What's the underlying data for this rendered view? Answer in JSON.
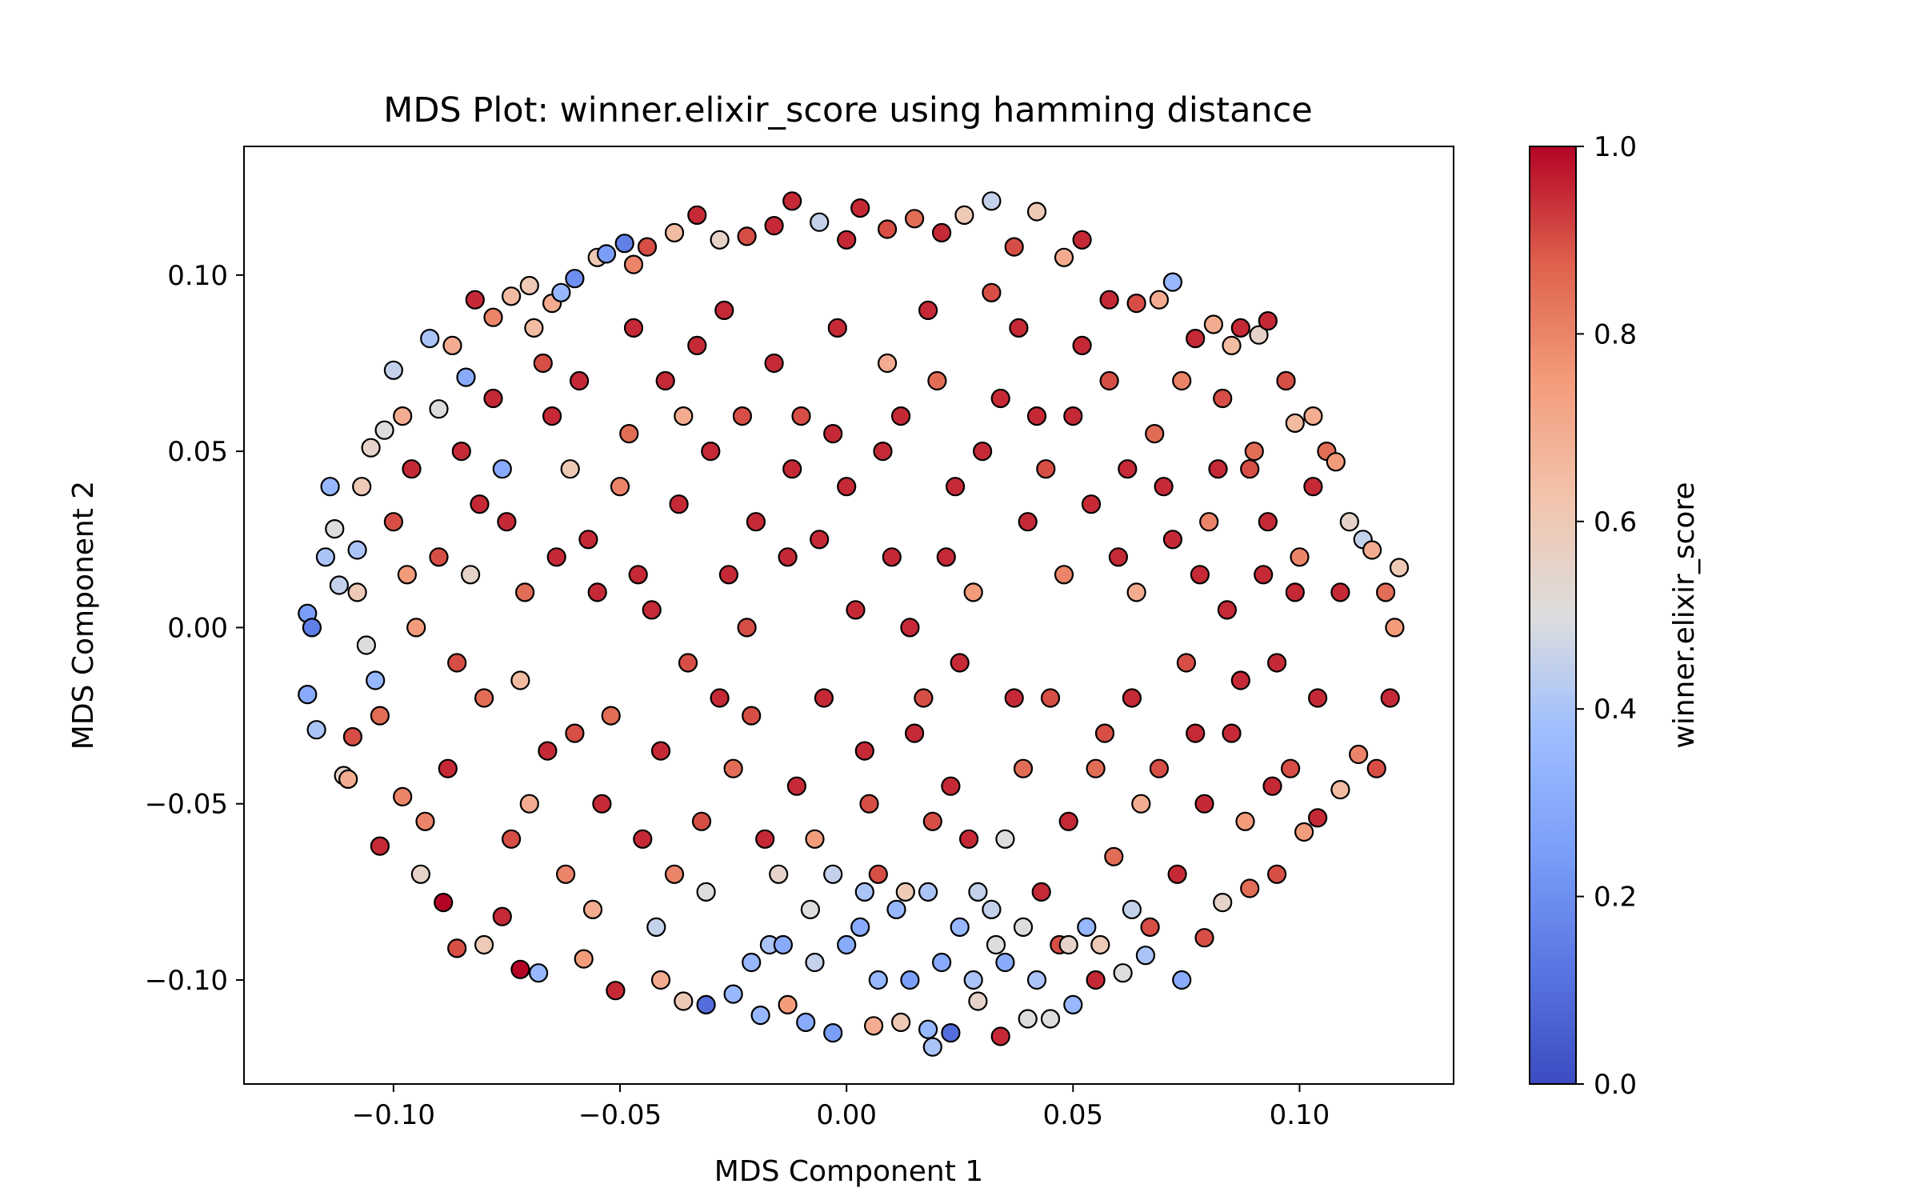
{
  "chart_data": {
    "type": "scatter",
    "title": "MDS Plot: winner.elixir_score using hamming distance",
    "xlabel": "MDS Component 1",
    "ylabel": "MDS Component 2",
    "xlim": [
      -0.133,
      0.134
    ],
    "ylim": [
      -0.1295,
      0.1365
    ],
    "xticks": [
      -0.1,
      -0.05,
      0.0,
      0.05,
      0.1
    ],
    "xtick_labels": [
      "−0.10",
      "−0.05",
      "0.00",
      "0.05",
      "0.10"
    ],
    "yticks": [
      -0.1,
      -0.05,
      0.0,
      0.05,
      0.1
    ],
    "ytick_labels": [
      "−0.10",
      "−0.05",
      "0.00",
      "0.05",
      "0.10"
    ],
    "grid": false,
    "colormap": "coolwarm",
    "colors": {
      "low": "#3b4cc0",
      "mid": "#dddddd",
      "high": "#b40426"
    },
    "colorbar": {
      "label": "winner.elixir_score",
      "range": [
        0.0,
        1.0
      ],
      "ticks": [
        0.0,
        0.2,
        0.4,
        0.6,
        0.8,
        1.0
      ],
      "tick_labels": [
        "0.0",
        "0.2",
        "0.4",
        "0.6",
        "0.8",
        "1.0"
      ]
    },
    "points": [
      [
        -0.119,
        0.004,
        0.25
      ],
      [
        -0.118,
        0.0,
        0.15
      ],
      [
        -0.119,
        -0.019,
        0.3
      ],
      [
        -0.117,
        -0.029,
        0.4
      ],
      [
        -0.114,
        0.04,
        0.35
      ],
      [
        -0.113,
        0.028,
        0.5
      ],
      [
        -0.112,
        0.012,
        0.45
      ],
      [
        -0.111,
        -0.042,
        0.55
      ],
      [
        -0.11,
        -0.043,
        0.7
      ],
      [
        -0.109,
        -0.031,
        0.9
      ],
      [
        -0.108,
        0.022,
        0.4
      ],
      [
        -0.107,
        0.04,
        0.6
      ],
      [
        -0.105,
        0.051,
        0.55
      ],
      [
        -0.104,
        -0.015,
        0.35
      ],
      [
        -0.103,
        -0.062,
        0.95
      ],
      [
        -0.102,
        0.056,
        0.5
      ],
      [
        -0.1,
        0.073,
        0.45
      ],
      [
        -0.098,
        -0.048,
        0.8
      ],
      [
        -0.096,
        0.045,
        0.95
      ],
      [
        -0.094,
        -0.07,
        0.55
      ],
      [
        -0.092,
        0.082,
        0.4
      ],
      [
        -0.09,
        0.062,
        0.5
      ],
      [
        -0.089,
        -0.078,
        1.0
      ],
      [
        -0.087,
        0.08,
        0.7
      ],
      [
        -0.086,
        -0.091,
        0.9
      ],
      [
        -0.084,
        0.071,
        0.3
      ],
      [
        -0.082,
        0.093,
        0.95
      ],
      [
        -0.08,
        -0.09,
        0.6
      ],
      [
        -0.078,
        0.088,
        0.8
      ],
      [
        -0.076,
        -0.082,
        0.95
      ],
      [
        -0.074,
        0.094,
        0.65
      ],
      [
        -0.072,
        -0.097,
        1.0
      ],
      [
        -0.07,
        0.097,
        0.6
      ],
      [
        -0.068,
        -0.098,
        0.35
      ],
      [
        -0.065,
        0.092,
        0.7
      ],
      [
        -0.063,
        0.095,
        0.35
      ],
      [
        -0.06,
        0.099,
        0.2
      ],
      [
        -0.058,
        -0.094,
        0.75
      ],
      [
        -0.055,
        0.105,
        0.6
      ],
      [
        -0.053,
        0.106,
        0.25
      ],
      [
        -0.051,
        -0.103,
        0.95
      ],
      [
        -0.049,
        0.109,
        0.15
      ],
      [
        -0.047,
        0.103,
        0.8
      ],
      [
        -0.044,
        0.108,
        0.9
      ],
      [
        -0.041,
        -0.1,
        0.7
      ],
      [
        -0.038,
        0.112,
        0.65
      ],
      [
        -0.036,
        -0.106,
        0.6
      ],
      [
        -0.033,
        0.117,
        0.95
      ],
      [
        -0.031,
        -0.107,
        0.1
      ],
      [
        -0.028,
        0.11,
        0.55
      ],
      [
        -0.025,
        -0.104,
        0.35
      ],
      [
        -0.022,
        0.111,
        0.9
      ],
      [
        -0.019,
        -0.11,
        0.35
      ],
      [
        -0.016,
        0.114,
        0.95
      ],
      [
        -0.013,
        -0.107,
        0.75
      ],
      [
        -0.012,
        0.121,
        0.95
      ],
      [
        -0.009,
        -0.112,
        0.3
      ],
      [
        -0.006,
        0.115,
        0.45
      ],
      [
        -0.003,
        -0.115,
        0.25
      ],
      [
        0.0,
        0.11,
        0.95
      ],
      [
        0.003,
        0.119,
        0.95
      ],
      [
        0.006,
        -0.113,
        0.7
      ],
      [
        0.009,
        0.113,
        0.9
      ],
      [
        0.012,
        -0.112,
        0.6
      ],
      [
        0.015,
        0.116,
        0.85
      ],
      [
        0.018,
        -0.114,
        0.35
      ],
      [
        0.019,
        -0.119,
        0.4
      ],
      [
        0.021,
        0.112,
        0.95
      ],
      [
        0.023,
        -0.115,
        0.1
      ],
      [
        0.026,
        0.117,
        0.6
      ],
      [
        0.029,
        -0.106,
        0.55
      ],
      [
        0.032,
        0.121,
        0.45
      ],
      [
        0.034,
        -0.116,
        0.95
      ],
      [
        0.037,
        0.108,
        0.9
      ],
      [
        0.04,
        -0.111,
        0.5
      ],
      [
        0.042,
        0.118,
        0.6
      ],
      [
        0.045,
        -0.111,
        0.5
      ],
      [
        0.048,
        0.105,
        0.7
      ],
      [
        0.05,
        -0.107,
        0.35
      ],
      [
        0.052,
        0.11,
        0.95
      ],
      [
        0.055,
        -0.1,
        0.95
      ],
      [
        0.058,
        0.093,
        0.95
      ],
      [
        0.061,
        -0.098,
        0.5
      ],
      [
        0.064,
        0.092,
        0.9
      ],
      [
        0.066,
        -0.093,
        0.4
      ],
      [
        0.069,
        0.093,
        0.7
      ],
      [
        0.072,
        0.098,
        0.35
      ],
      [
        0.074,
        -0.1,
        0.3
      ],
      [
        0.077,
        0.082,
        0.95
      ],
      [
        0.079,
        -0.088,
        0.9
      ],
      [
        0.081,
        0.086,
        0.7
      ],
      [
        0.083,
        -0.078,
        0.55
      ],
      [
        0.085,
        0.08,
        0.65
      ],
      [
        0.087,
        0.085,
        0.95
      ],
      [
        0.089,
        -0.074,
        0.85
      ],
      [
        0.091,
        0.083,
        0.55
      ],
      [
        0.093,
        0.087,
        0.95
      ],
      [
        0.095,
        -0.07,
        0.9
      ],
      [
        0.097,
        0.07,
        0.55
      ],
      [
        0.099,
        0.058,
        0.65
      ],
      [
        0.101,
        -0.058,
        0.75
      ],
      [
        0.103,
        0.06,
        0.7
      ],
      [
        0.104,
        -0.054,
        0.95
      ],
      [
        0.106,
        0.05,
        0.85
      ],
      [
        0.108,
        0.047,
        0.75
      ],
      [
        0.109,
        -0.046,
        0.65
      ],
      [
        0.111,
        0.03,
        0.55
      ],
      [
        0.113,
        -0.036,
        0.8
      ],
      [
        0.114,
        0.025,
        0.45
      ],
      [
        0.116,
        0.022,
        0.7
      ],
      [
        0.117,
        -0.04,
        0.9
      ],
      [
        0.119,
        0.01,
        0.85
      ],
      [
        0.12,
        -0.02,
        0.95
      ],
      [
        0.121,
        0.0,
        0.75
      ],
      [
        0.122,
        0.017,
        0.6
      ],
      [
        -0.09,
        0.02,
        0.9
      ],
      [
        -0.085,
        0.05,
        0.95
      ],
      [
        -0.08,
        -0.02,
        0.85
      ],
      [
        -0.075,
        0.03,
        0.95
      ],
      [
        -0.07,
        -0.05,
        0.7
      ],
      [
        -0.065,
        0.06,
        0.95
      ],
      [
        -0.06,
        -0.03,
        0.9
      ],
      [
        -0.055,
        0.01,
        0.95
      ],
      [
        -0.05,
        0.04,
        0.8
      ],
      [
        -0.045,
        -0.06,
        0.95
      ],
      [
        -0.04,
        0.07,
        0.95
      ],
      [
        -0.035,
        -0.01,
        0.9
      ],
      [
        -0.03,
        0.05,
        0.95
      ],
      [
        -0.025,
        -0.04,
        0.85
      ],
      [
        -0.02,
        0.03,
        0.95
      ],
      [
        -0.015,
        -0.07,
        0.55
      ],
      [
        -0.01,
        0.06,
        0.9
      ],
      [
        -0.005,
        -0.02,
        0.95
      ],
      [
        0.0,
        0.04,
        0.95
      ],
      [
        0.005,
        -0.05,
        0.9
      ],
      [
        0.01,
        0.02,
        0.95
      ],
      [
        0.015,
        -0.03,
        0.95
      ],
      [
        0.02,
        0.07,
        0.85
      ],
      [
        0.025,
        -0.01,
        0.95
      ],
      [
        0.03,
        0.05,
        0.95
      ],
      [
        0.035,
        -0.06,
        0.5
      ],
      [
        0.04,
        0.03,
        0.95
      ],
      [
        0.045,
        -0.02,
        0.9
      ],
      [
        0.05,
        0.06,
        0.95
      ],
      [
        0.055,
        -0.04,
        0.85
      ],
      [
        0.06,
        0.02,
        0.95
      ],
      [
        0.065,
        -0.05,
        0.7
      ],
      [
        0.07,
        0.04,
        0.95
      ],
      [
        0.075,
        -0.01,
        0.9
      ],
      [
        0.08,
        0.03,
        0.8
      ],
      [
        0.085,
        -0.03,
        0.95
      ],
      [
        0.09,
        0.05,
        0.85
      ],
      [
        0.095,
        -0.01,
        0.95
      ],
      [
        0.1,
        0.02,
        0.8
      ],
      [
        -0.1,
        0.03,
        0.9
      ],
      [
        -0.095,
        0.0,
        0.75
      ],
      [
        -0.088,
        -0.04,
        0.95
      ],
      [
        -0.083,
        0.015,
        0.55
      ],
      [
        -0.078,
        0.065,
        0.95
      ],
      [
        -0.072,
        -0.015,
        0.65
      ],
      [
        -0.067,
        0.075,
        0.9
      ],
      [
        -0.062,
        -0.07,
        0.8
      ],
      [
        -0.057,
        0.025,
        0.95
      ],
      [
        -0.052,
        -0.025,
        0.85
      ],
      [
        -0.047,
        0.085,
        0.95
      ],
      [
        -0.042,
        -0.085,
        0.45
      ],
      [
        -0.037,
        0.035,
        0.95
      ],
      [
        -0.032,
        -0.055,
        0.9
      ],
      [
        -0.027,
        0.09,
        0.95
      ],
      [
        -0.022,
        0.0,
        0.9
      ],
      [
        -0.017,
        -0.09,
        0.4
      ],
      [
        -0.012,
        0.045,
        0.95
      ],
      [
        -0.007,
        -0.06,
        0.75
      ],
      [
        -0.002,
        0.085,
        0.95
      ],
      [
        0.003,
        -0.085,
        0.3
      ],
      [
        0.008,
        0.05,
        0.95
      ],
      [
        0.013,
        -0.075,
        0.6
      ],
      [
        0.018,
        0.09,
        0.95
      ],
      [
        0.023,
        -0.045,
        0.95
      ],
      [
        0.028,
        0.01,
        0.75
      ],
      [
        0.033,
        -0.09,
        0.5
      ],
      [
        0.038,
        0.085,
        0.95
      ],
      [
        0.043,
        -0.075,
        0.95
      ],
      [
        0.048,
        0.015,
        0.8
      ],
      [
        0.053,
        -0.085,
        0.35
      ],
      [
        0.058,
        0.07,
        0.9
      ],
      [
        0.063,
        -0.02,
        0.95
      ],
      [
        0.068,
        0.055,
        0.85
      ],
      [
        0.073,
        -0.07,
        0.95
      ],
      [
        0.078,
        0.015,
        0.95
      ],
      [
        0.083,
        0.065,
        0.9
      ],
      [
        0.088,
        -0.055,
        0.75
      ],
      [
        0.093,
        0.03,
        0.95
      ],
      [
        0.098,
        -0.04,
        0.9
      ],
      [
        0.103,
        0.04,
        0.95
      ],
      [
        -0.108,
        0.01,
        0.6
      ],
      [
        -0.103,
        -0.025,
        0.85
      ],
      [
        -0.098,
        0.06,
        0.7
      ],
      [
        -0.093,
        -0.055,
        0.8
      ],
      [
        -0.076,
        0.045,
        0.3
      ],
      [
        -0.071,
        0.01,
        0.85
      ],
      [
        -0.066,
        -0.035,
        0.95
      ],
      [
        -0.061,
        0.045,
        0.6
      ],
      [
        -0.056,
        -0.08,
        0.7
      ],
      [
        -0.046,
        0.015,
        0.95
      ],
      [
        -0.041,
        -0.035,
        0.95
      ],
      [
        -0.036,
        0.06,
        0.7
      ],
      [
        -0.031,
        -0.075,
        0.5
      ],
      [
        -0.026,
        0.015,
        0.95
      ],
      [
        -0.021,
        -0.025,
        0.9
      ],
      [
        -0.016,
        0.075,
        0.95
      ],
      [
        -0.011,
        -0.045,
        0.95
      ],
      [
        -0.006,
        0.025,
        0.95
      ],
      [
        0.004,
        -0.035,
        0.95
      ],
      [
        0.009,
        0.075,
        0.7
      ],
      [
        0.014,
        0.0,
        0.95
      ],
      [
        0.019,
        -0.055,
        0.9
      ],
      [
        0.024,
        0.04,
        0.95
      ],
      [
        0.029,
        -0.075,
        0.45
      ],
      [
        0.034,
        0.065,
        0.95
      ],
      [
        0.039,
        -0.04,
        0.85
      ],
      [
        0.044,
        0.045,
        0.9
      ],
      [
        0.049,
        -0.055,
        0.95
      ],
      [
        0.054,
        0.035,
        0.95
      ],
      [
        0.059,
        -0.065,
        0.85
      ],
      [
        0.064,
        0.01,
        0.7
      ],
      [
        0.069,
        -0.04,
        0.9
      ],
      [
        0.074,
        0.07,
        0.8
      ],
      [
        0.079,
        -0.05,
        0.95
      ],
      [
        0.084,
        0.005,
        0.95
      ],
      [
        0.089,
        0.045,
        0.9
      ],
      [
        0.094,
        -0.045,
        0.95
      ],
      [
        0.099,
        0.01,
        0.95
      ],
      [
        0.104,
        -0.02,
        0.95
      ],
      [
        0.109,
        0.01,
        0.95
      ],
      [
        -0.115,
        0.02,
        0.4
      ],
      [
        -0.106,
        -0.005,
        0.5
      ],
      [
        -0.097,
        0.015,
        0.75
      ],
      [
        -0.086,
        -0.01,
        0.9
      ],
      [
        -0.081,
        0.035,
        0.95
      ],
      [
        -0.074,
        -0.06,
        0.9
      ],
      [
        -0.069,
        0.085,
        0.65
      ],
      [
        -0.064,
        0.02,
        0.95
      ],
      [
        -0.059,
        0.07,
        0.95
      ],
      [
        -0.054,
        -0.05,
        0.95
      ],
      [
        -0.048,
        0.055,
        0.85
      ],
      [
        -0.043,
        0.005,
        0.95
      ],
      [
        -0.038,
        -0.07,
        0.8
      ],
      [
        -0.033,
        0.08,
        0.95
      ],
      [
        -0.028,
        -0.02,
        0.95
      ],
      [
        -0.023,
        0.06,
        0.9
      ],
      [
        -0.018,
        -0.06,
        0.95
      ],
      [
        -0.013,
        0.02,
        0.95
      ],
      [
        -0.008,
        -0.08,
        0.5
      ],
      [
        -0.003,
        0.055,
        0.95
      ],
      [
        0.002,
        0.005,
        0.95
      ],
      [
        0.007,
        -0.07,
        0.9
      ],
      [
        0.012,
        0.06,
        0.95
      ],
      [
        0.017,
        -0.02,
        0.9
      ],
      [
        0.022,
        0.02,
        0.95
      ],
      [
        0.027,
        -0.06,
        0.95
      ],
      [
        0.032,
        0.095,
        0.9
      ],
      [
        0.037,
        -0.02,
        0.95
      ],
      [
        0.042,
        0.06,
        0.95
      ],
      [
        0.047,
        -0.09,
        0.9
      ],
      [
        0.052,
        0.08,
        0.95
      ],
      [
        0.057,
        -0.03,
        0.9
      ],
      [
        0.062,
        0.045,
        0.95
      ],
      [
        0.067,
        -0.085,
        0.9
      ],
      [
        0.072,
        0.025,
        0.95
      ],
      [
        0.077,
        -0.03,
        0.95
      ],
      [
        0.082,
        0.045,
        0.95
      ],
      [
        0.087,
        -0.015,
        0.95
      ],
      [
        0.092,
        0.015,
        0.95
      ],
      [
        0.097,
        0.07,
        0.9
      ],
      [
        0.021,
        -0.095,
        0.3
      ],
      [
        0.014,
        -0.1,
        0.25
      ],
      [
        0.007,
        -0.1,
        0.35
      ],
      [
        0.0,
        -0.09,
        0.3
      ],
      [
        -0.007,
        -0.095,
        0.45
      ],
      [
        -0.014,
        -0.09,
        0.3
      ],
      [
        -0.021,
        -0.095,
        0.35
      ],
      [
        0.028,
        -0.1,
        0.4
      ],
      [
        0.035,
        -0.095,
        0.3
      ],
      [
        0.042,
        -0.1,
        0.4
      ],
      [
        0.049,
        -0.09,
        0.55
      ],
      [
        0.056,
        -0.09,
        0.6
      ],
      [
        0.063,
        -0.08,
        0.45
      ],
      [
        0.011,
        -0.08,
        0.35
      ],
      [
        0.004,
        -0.075,
        0.4
      ],
      [
        -0.003,
        -0.07,
        0.45
      ],
      [
        0.018,
        -0.075,
        0.4
      ],
      [
        0.025,
        -0.085,
        0.35
      ],
      [
        0.032,
        -0.08,
        0.45
      ],
      [
        0.039,
        -0.085,
        0.5
      ]
    ]
  }
}
